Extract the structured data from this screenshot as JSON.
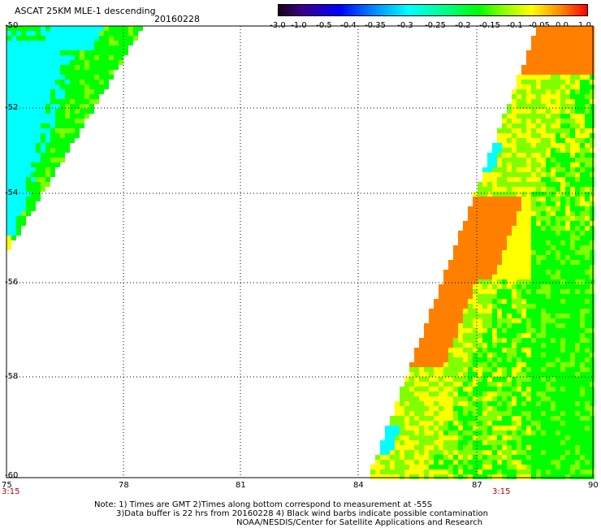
{
  "header": {
    "title": "ASCAT 25KM MLE-1 descending",
    "date": "20160228"
  },
  "colorbar": {
    "labels": [
      "-3.0",
      "-1.0",
      "-0.5",
      "-0.4",
      "-0.35",
      "-0.3",
      "-0.25",
      "-0.2",
      "-0.15",
      "-0.1",
      "-0.05",
      "0.0",
      "1.0"
    ],
    "colors": [
      "#1a0016",
      "#3a0090",
      "#0000ff",
      "#0080ff",
      "#00ffff",
      "#00ff80",
      "#00ff00",
      "#80ff00",
      "#ffff00",
      "#ff8000",
      "#ff0000"
    ]
  },
  "axes": {
    "x_ticks": [
      "75",
      "78",
      "81",
      "84",
      "87",
      "90"
    ],
    "y_ticks": [
      "-50",
      "-52",
      "-54",
      "-56",
      "-58",
      "-60"
    ],
    "time_labels": [
      "3:15",
      "3:15"
    ]
  },
  "notes": {
    "line1": "Note: 1) Times are GMT 2)Times along bottom correspond to measurement at -55S",
    "line2": "3)Data buffer is 22 hrs from 20160228 4) Black wind barbs indicate possible contamination",
    "line3": "NOAA/NESDIS/Center for Satellite Applications and Research"
  },
  "palette": {
    "cyan": "#00ffff",
    "green": "#00ff00",
    "lime": "#80ff00",
    "yellow": "#ffff00",
    "orange": "#ff8000"
  }
}
